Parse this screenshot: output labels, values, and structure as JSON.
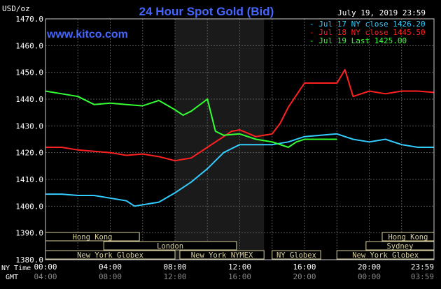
{
  "chart_data": {
    "type": "line",
    "title": "24 Hour Spot Gold (Bid)",
    "unit_label": "USD/oz",
    "watermark": "www.kitco.com",
    "date_label": "July 19, 2019 23:59",
    "ylim": [
      1380,
      1470
    ],
    "xlim": [
      0,
      24
    ],
    "grid": true,
    "legend_position": "top-right",
    "y_ticks": [
      "1380.0",
      "1390.0",
      "1400.0",
      "1410.0",
      "1420.0",
      "1430.0",
      "1440.0",
      "1450.0",
      "1460.0",
      "1470.0"
    ],
    "x_ticks_ny": [
      "00:00",
      "04:00",
      "08:00",
      "12:00",
      "16:00",
      "20:00",
      "23:59"
    ],
    "x_ticks_gmt": [
      "04:00",
      "08:00",
      "12:00",
      "16:00",
      "20:00",
      "00:00",
      "03:59"
    ],
    "x_row_labels": [
      "NY Time",
      "GMT"
    ],
    "shaded_region": [
      8.0,
      13.5
    ],
    "legend": [
      {
        "text": "- Jul 17 NY close 1426.20",
        "color": "#33ccff"
      },
      {
        "text": "- Jul 18 NY close 1445.50",
        "color": "#ff2020"
      },
      {
        "text": "- Jul 19 Last 1425.00",
        "color": "#33ff33"
      }
    ],
    "series": [
      {
        "name": "Jul 17 NY close 1426.20",
        "color": "#33ccff",
        "x": [
          0,
          1,
          2,
          3,
          4,
          5,
          5.5,
          6,
          7,
          8,
          9,
          10,
          11,
          11.5,
          12,
          13,
          14,
          15,
          16,
          17,
          18,
          18.5,
          19,
          20,
          21,
          22,
          23,
          24
        ],
        "y": [
          1404.5,
          1404.5,
          1404,
          1404,
          1403,
          1402,
          1400,
          1400.5,
          1401.5,
          1405,
          1409,
          1414,
          1420,
          1421.5,
          1423,
          1423,
          1423,
          1424,
          1426,
          1426.5,
          1427,
          1426,
          1425,
          1424,
          1425,
          1423,
          1422,
          1422
        ]
      },
      {
        "name": "Jul 18 NY close 1445.50",
        "color": "#ff2020",
        "x": [
          0,
          1,
          2,
          3,
          4,
          5,
          6,
          7,
          8,
          9,
          10,
          11,
          11.5,
          12,
          13,
          14,
          14.5,
          15,
          16,
          17,
          18,
          18.5,
          19,
          20,
          21,
          22,
          23,
          24
        ],
        "y": [
          1422,
          1422,
          1421,
          1420.5,
          1420,
          1419,
          1419.5,
          1418.5,
          1417,
          1418,
          1422,
          1426,
          1428,
          1428.5,
          1426,
          1427,
          1431,
          1437,
          1446,
          1446,
          1446,
          1451,
          1441,
          1443,
          1442,
          1443,
          1443,
          1442.5
        ]
      },
      {
        "name": "Jul 19 Last 1425.00",
        "color": "#33ff33",
        "x": [
          0,
          1,
          2,
          3,
          4,
          5,
          6,
          7,
          8,
          8.5,
          9,
          10,
          10.5,
          11,
          12,
          13,
          14,
          15,
          15.5,
          16,
          17,
          18
        ],
        "y": [
          1443,
          1442,
          1441,
          1438,
          1438.5,
          1438,
          1437.5,
          1439.5,
          1436,
          1434,
          1435.5,
          1440,
          1428,
          1426.5,
          1427,
          1425,
          1424,
          1422,
          1424,
          1425,
          1425,
          1425
        ]
      }
    ],
    "sessions": [
      {
        "label": "Hong Kong",
        "start": -0.1,
        "end": 5.8,
        "row": 0
      },
      {
        "label": "London",
        "start": 3.6,
        "end": 11.8,
        "row": 1
      },
      {
        "label": "New York Globex",
        "start": -0.1,
        "end": 8.0,
        "row": 2
      },
      {
        "label": "New York NYMEX",
        "start": 8.3,
        "end": 13.5,
        "row": 2
      },
      {
        "label": "NY Globex",
        "start": 14.0,
        "end": 17.0,
        "row": 2
      },
      {
        "label": "Hong Kong",
        "start": 20.8,
        "end": 24.1,
        "row": 0
      },
      {
        "label": "Sydney",
        "start": 19.8,
        "end": 24.1,
        "row": 1
      },
      {
        "label": "New York Globex",
        "start": 18.0,
        "end": 24.1,
        "row": 2
      }
    ]
  }
}
